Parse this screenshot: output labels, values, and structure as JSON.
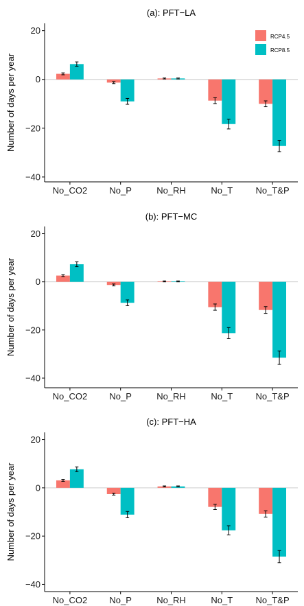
{
  "chart_data": [
    {
      "type": "bar",
      "title": "(a): PFT−LA",
      "ylabel": "Number of days per year",
      "xlabel": "",
      "categories": [
        "No_CO2",
        "No_P",
        "No_RH",
        "No_T",
        "No_T&P"
      ],
      "ylim": [
        -42,
        23
      ],
      "yticks": [
        20,
        0,
        -20,
        -40
      ],
      "ytick_labels": [
        "20",
        "0",
        "−20",
        "−40"
      ],
      "series": [
        {
          "name": "RCP4.5",
          "values": [
            2.3,
            -1.3,
            0.4,
            -8.7,
            -10.0
          ],
          "errors": [
            0.4,
            0.4,
            0.2,
            1.2,
            1.2
          ]
        },
        {
          "name": "RCP8.5",
          "values": [
            6.3,
            -9.0,
            0.4,
            -18.3,
            -27.3
          ],
          "errors": [
            0.9,
            1.2,
            0.2,
            2.0,
            2.3
          ]
        }
      ],
      "legend_position": "top-right"
    },
    {
      "type": "bar",
      "title": "(b): PFT−MC",
      "ylabel": "Number of days per year",
      "xlabel": "",
      "categories": [
        "No_CO2",
        "No_P",
        "No_RH",
        "No_T",
        "No_T&P"
      ],
      "ylim": [
        -44,
        23
      ],
      "yticks": [
        20,
        0,
        -20,
        -40
      ],
      "ytick_labels": [
        "20",
        "0",
        "−20",
        "−40"
      ],
      "series": [
        {
          "name": "RCP4.5",
          "values": [
            2.6,
            -1.3,
            0.2,
            -10.5,
            -11.7
          ],
          "errors": [
            0.4,
            0.4,
            0.2,
            1.3,
            1.4
          ]
        },
        {
          "name": "RCP8.5",
          "values": [
            7.3,
            -8.7,
            0.2,
            -21.3,
            -31.5
          ],
          "errors": [
            1.0,
            1.2,
            0.2,
            2.3,
            2.8
          ]
        }
      ],
      "legend_position": "none"
    },
    {
      "type": "bar",
      "title": "(c): PFT−HA",
      "ylabel": "Number of days per year",
      "xlabel": "",
      "categories": [
        "No_CO2",
        "No_P",
        "No_RH",
        "No_T",
        "No_T&P"
      ],
      "ylim": [
        -43,
        23
      ],
      "yticks": [
        20,
        0,
        -20,
        -40
      ],
      "ytick_labels": [
        "20",
        "0",
        "−20",
        "−40"
      ],
      "series": [
        {
          "name": "RCP4.5",
          "values": [
            3.1,
            -2.6,
            0.6,
            -7.9,
            -10.8
          ],
          "errors": [
            0.4,
            0.4,
            0.2,
            1.1,
            1.3
          ]
        },
        {
          "name": "RCP8.5",
          "values": [
            7.7,
            -11.1,
            0.6,
            -17.6,
            -28.5
          ],
          "errors": [
            1.0,
            1.3,
            0.2,
            1.9,
            2.5
          ]
        }
      ],
      "legend_position": "none"
    }
  ],
  "colors": {
    "RCP4.5": "#F8766D",
    "RCP8.5": "#00BFC4",
    "zero_line": "#cccccc",
    "axis": "#000000",
    "error_bar": "#000000"
  }
}
